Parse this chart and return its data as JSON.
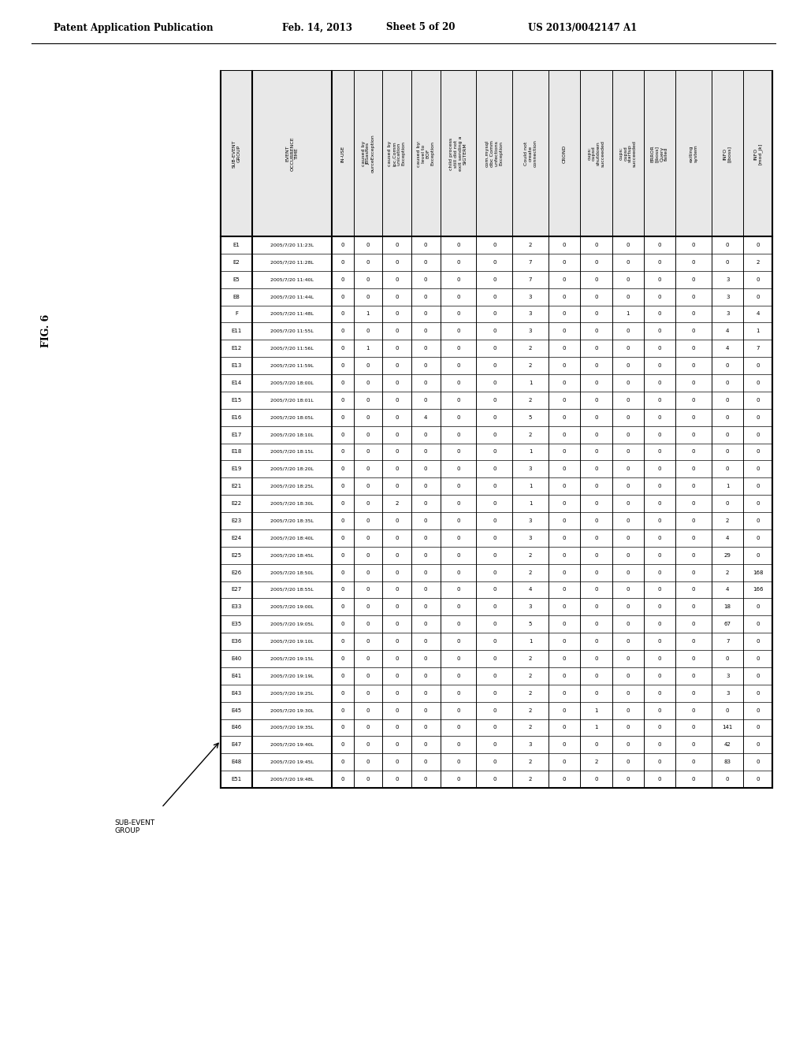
{
  "header_line1": "Patent Application Publication",
  "header_date": "Feb. 14, 2013",
  "header_sheet": "Sheet 5 of 20",
  "header_patent": "US 2013/0042147 A1",
  "fig_label": "FIG. 6",
  "rows": [
    [
      "E1",
      "2005/7/20 11:23L",
      "0",
      "0",
      "0",
      "0",
      "0",
      "0",
      "2",
      "0",
      "0",
      "0",
      "0",
      "0",
      "0",
      "0"
    ],
    [
      "E2",
      "2005/7/20 11:28L",
      "0",
      "0",
      "0",
      "0",
      "0",
      "0",
      "7",
      "0",
      "0",
      "0",
      "0",
      "0",
      "0",
      "2"
    ],
    [
      "E5",
      "2005/7/20 11:40L",
      "0",
      "0",
      "0",
      "0",
      "0",
      "0",
      "7",
      "0",
      "0",
      "0",
      "0",
      "0",
      "3",
      "0"
    ],
    [
      "E8",
      "2005/7/20 11:44L",
      "0",
      "0",
      "0",
      "0",
      "0",
      "0",
      "3",
      "0",
      "0",
      "0",
      "0",
      "0",
      "3",
      "0"
    ],
    [
      "F",
      "2005/7/20 11:48L",
      "0",
      "1",
      "0",
      "0",
      "0",
      "0",
      "3",
      "0",
      "0",
      "1",
      "0",
      "0",
      "3",
      "4"
    ],
    [
      "E11",
      "2005/7/20 11:55L",
      "0",
      "0",
      "0",
      "0",
      "0",
      "0",
      "3",
      "0",
      "0",
      "0",
      "0",
      "0",
      "4",
      "1"
    ],
    [
      "E12",
      "2005/7/20 11:56L",
      "0",
      "1",
      "0",
      "0",
      "0",
      "0",
      "2",
      "0",
      "0",
      "0",
      "0",
      "0",
      "4",
      "7"
    ],
    [
      "E13",
      "2005/7/20 11:59L",
      "0",
      "0",
      "0",
      "0",
      "0",
      "0",
      "2",
      "0",
      "0",
      "0",
      "0",
      "0",
      "0",
      "0"
    ],
    [
      "E14",
      "2005/7/20 18:00L",
      "0",
      "0",
      "0",
      "0",
      "0",
      "0",
      "1",
      "0",
      "0",
      "0",
      "0",
      "0",
      "0",
      "0"
    ],
    [
      "E15",
      "2005/7/20 18:01L",
      "0",
      "0",
      "0",
      "0",
      "0",
      "0",
      "2",
      "0",
      "0",
      "0",
      "0",
      "0",
      "0",
      "0"
    ],
    [
      "E16",
      "2005/7/20 18:05L",
      "0",
      "0",
      "0",
      "4",
      "0",
      "0",
      "5",
      "0",
      "0",
      "0",
      "0",
      "0",
      "0",
      "0"
    ],
    [
      "E17",
      "2005/7/20 18:10L",
      "0",
      "0",
      "0",
      "0",
      "0",
      "0",
      "2",
      "0",
      "0",
      "0",
      "0",
      "0",
      "0",
      "0"
    ],
    [
      "E18",
      "2005/7/20 18:15L",
      "0",
      "0",
      "0",
      "0",
      "0",
      "0",
      "1",
      "0",
      "0",
      "0",
      "0",
      "0",
      "0",
      "0"
    ],
    [
      "E19",
      "2005/7/20 18:20L",
      "0",
      "0",
      "0",
      "0",
      "0",
      "0",
      "3",
      "0",
      "0",
      "0",
      "0",
      "0",
      "0",
      "0"
    ],
    [
      "E21",
      "2005/7/20 18:25L",
      "0",
      "0",
      "0",
      "0",
      "0",
      "0",
      "1",
      "0",
      "0",
      "0",
      "0",
      "0",
      "1",
      "0"
    ],
    [
      "E22",
      "2005/7/20 18:30L",
      "0",
      "0",
      "2",
      "0",
      "0",
      "0",
      "1",
      "0",
      "0",
      "0",
      "0",
      "0",
      "0",
      "0"
    ],
    [
      "E23",
      "2005/7/20 18:35L",
      "0",
      "0",
      "0",
      "0",
      "0",
      "0",
      "3",
      "0",
      "0",
      "0",
      "0",
      "0",
      "2",
      "0"
    ],
    [
      "E24",
      "2005/7/20 18:40L",
      "0",
      "0",
      "0",
      "0",
      "0",
      "0",
      "3",
      "0",
      "0",
      "0",
      "0",
      "0",
      "4",
      "0"
    ],
    [
      "E25",
      "2005/7/20 18:45L",
      "0",
      "0",
      "0",
      "0",
      "0",
      "0",
      "2",
      "0",
      "0",
      "0",
      "0",
      "0",
      "29",
      "0"
    ],
    [
      "E26",
      "2005/7/20 18:50L",
      "0",
      "0",
      "0",
      "0",
      "0",
      "0",
      "2",
      "0",
      "0",
      "0",
      "0",
      "0",
      "2",
      "168"
    ],
    [
      "E27",
      "2005/7/20 18:55L",
      "0",
      "0",
      "0",
      "0",
      "0",
      "0",
      "4",
      "0",
      "0",
      "0",
      "0",
      "0",
      "4",
      "166"
    ],
    [
      "E33",
      "2005/7/20 19:00L",
      "0",
      "0",
      "0",
      "0",
      "0",
      "0",
      "3",
      "0",
      "0",
      "0",
      "0",
      "0",
      "18",
      "0"
    ],
    [
      "E35",
      "2005/7/20 19:05L",
      "0",
      "0",
      "0",
      "0",
      "0",
      "0",
      "5",
      "0",
      "0",
      "0",
      "0",
      "0",
      "67",
      "0"
    ],
    [
      "E36",
      "2005/7/20 19:10L",
      "0",
      "0",
      "0",
      "0",
      "0",
      "0",
      "1",
      "0",
      "0",
      "0",
      "0",
      "0",
      "7",
      "0"
    ],
    [
      "E40",
      "2005/7/20 19:15L",
      "0",
      "0",
      "0",
      "0",
      "0",
      "0",
      "2",
      "0",
      "0",
      "0",
      "0",
      "0",
      "0",
      "0"
    ],
    [
      "E41",
      "2005/7/20 19:19L",
      "0",
      "0",
      "0",
      "0",
      "0",
      "0",
      "2",
      "0",
      "0",
      "0",
      "0",
      "0",
      "3",
      "0"
    ],
    [
      "E43",
      "2005/7/20 19:25L",
      "0",
      "0",
      "0",
      "0",
      "0",
      "0",
      "2",
      "0",
      "0",
      "0",
      "0",
      "0",
      "3",
      "0"
    ],
    [
      "E45",
      "2005/7/20 19:30L",
      "0",
      "0",
      "0",
      "0",
      "0",
      "0",
      "2",
      "0",
      "1",
      "0",
      "0",
      "0",
      "0",
      "0"
    ],
    [
      "E46",
      "2005/7/20 19:35L",
      "0",
      "0",
      "0",
      "0",
      "0",
      "0",
      "2",
      "0",
      "1",
      "0",
      "0",
      "0",
      "141",
      "0"
    ],
    [
      "E47",
      "2005/7/20 19:40L",
      "0",
      "0",
      "0",
      "0",
      "0",
      "0",
      "3",
      "0",
      "0",
      "0",
      "0",
      "0",
      "42",
      "0"
    ],
    [
      "E48",
      "2005/7/20 19:45L",
      "0",
      "0",
      "0",
      "0",
      "0",
      "0",
      "2",
      "0",
      "2",
      "0",
      "0",
      "0",
      "83",
      "0"
    ],
    [
      "E51",
      "2005/7/20 19:48L",
      "0",
      "0",
      "0",
      "0",
      "0",
      "0",
      "2",
      "0",
      "0",
      "0",
      "0",
      "0",
      "0",
      "0"
    ]
  ],
  "col_headers_rotated": [
    "SUB-EVENT\nGROUP",
    "EVENT\nOCCURRENCE\nTIME",
    "IN-USE",
    "caused by\nJBSasRes\nourceException",
    "caused by\nipc.Comm\nunication\nException",
    "caused by:\nlevel to\nEOF\nException",
    "child process\nstill did not\nexit sending a\nSIGTERM",
    "com.mysql\ndbc Comm\nunfections\nException",
    "Could not\ncreate\nconnection",
    "CROND",
    "cups:\ncupsd\nshutdown\nsucceeded",
    "cups:\ncupsd\nstartup\nsucceeded",
    "ERROR\n[jboss]\nQuery\nfailed",
    "exiting\nsystem",
    "INFO\n[jboss]",
    "INFO\n[mod_jk]"
  ],
  "bg_color": "#ffffff",
  "text_color": "#000000",
  "line_color": "#000000"
}
